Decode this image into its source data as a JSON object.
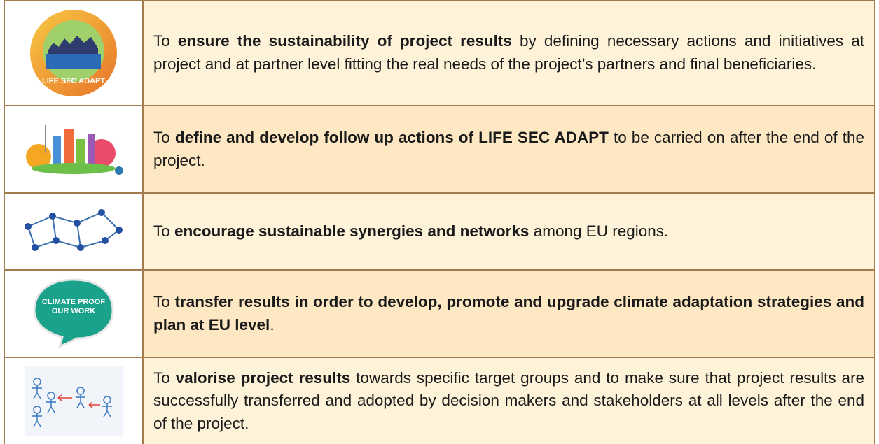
{
  "rows": [
    {
      "icon_label": "LIFE SEC ADAPT",
      "before": "To ",
      "strong": "ensure the sustainability of project results",
      "after": " by defining necessary actions and initiatives at project and at partner level fitting the real needs of the project’s partners and final beneficiaries."
    },
    {
      "before": "To ",
      "strong": "define and develop follow up actions of LIFE SEC ADAPT",
      "after": " to be carried on after the end of the project."
    },
    {
      "before": "To ",
      "strong": "encourage sustainable synergies and networks",
      "after": " among EU regions."
    },
    {
      "icon_label": "CLIMATE PROOF OUR WORK",
      "before": "To ",
      "strong": "transfer results in order to develop, promote and upgrade climate adaptation strategies and plan at EU level",
      "after": "."
    },
    {
      "before": "To ",
      "strong": "valorise project results",
      "after": " towards specific target groups and to make sure that project results are successfully transferred and adopted by decision makers and stakeholders at all levels after the end of the project."
    }
  ]
}
